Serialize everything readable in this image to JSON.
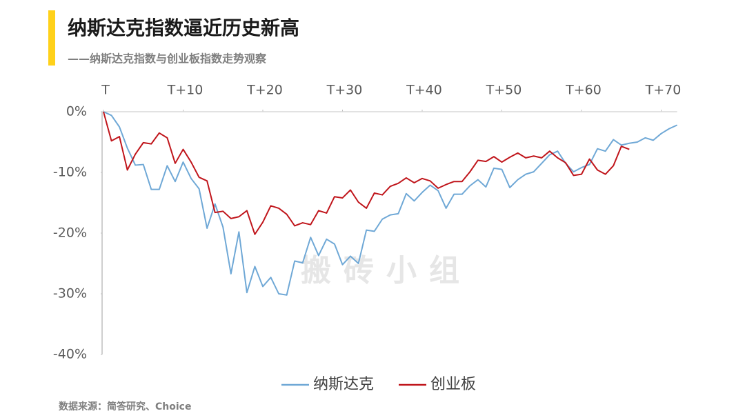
{
  "chart_data": {
    "type": "line",
    "title": "纳斯达克指数逼近历史新高",
    "subtitle": "——纳斯达克指数与创业板指数走势观察",
    "source": "数据来源：简答研究、Choice",
    "watermark": "搬砖小组",
    "x": [
      0,
      1,
      2,
      3,
      4,
      5,
      6,
      7,
      8,
      9,
      10,
      11,
      12,
      13,
      14,
      15,
      16,
      17,
      18,
      19,
      20,
      21,
      22,
      23,
      24,
      25,
      26,
      27,
      28,
      29,
      30,
      31,
      32,
      33,
      34,
      35,
      36,
      37,
      38,
      39,
      40,
      41,
      42,
      43,
      44,
      45,
      46,
      47,
      48,
      49,
      50,
      51,
      52,
      53,
      54,
      55,
      56,
      57,
      58,
      59,
      60,
      61,
      62,
      63,
      64,
      65,
      66,
      67,
      68,
      69,
      70,
      71,
      72
    ],
    "xlim": [
      0,
      72
    ],
    "xticks": [
      {
        "value": 0,
        "label": "T"
      },
      {
        "value": 10,
        "label": "T+10"
      },
      {
        "value": 20,
        "label": "T+20"
      },
      {
        "value": 30,
        "label": "T+30"
      },
      {
        "value": 40,
        "label": "T+40"
      },
      {
        "value": 50,
        "label": "T+50"
      },
      {
        "value": 60,
        "label": "T+60"
      },
      {
        "value": 70,
        "label": "T+70"
      }
    ],
    "ylim": [
      -40,
      0
    ],
    "yticks": [
      {
        "value": 0,
        "label": "0%"
      },
      {
        "value": -10,
        "label": "-10%"
      },
      {
        "value": -20,
        "label": "-20%"
      },
      {
        "value": -30,
        "label": "-30%"
      },
      {
        "value": -40,
        "label": "-40%"
      }
    ],
    "series": [
      {
        "name": "纳斯达克",
        "color": "#6fa8d6",
        "values": [
          0,
          -0.6,
          -2.5,
          -6,
          -8.8,
          -8.7,
          -12.8,
          -12.8,
          -8.9,
          -11.5,
          -8.3,
          -11,
          -12.7,
          -19.2,
          -15.2,
          -19,
          -26.7,
          -19.8,
          -29.8,
          -25.5,
          -28.8,
          -27.3,
          -30,
          -30.2,
          -24.6,
          -24.9,
          -20.7,
          -23.7,
          -21,
          -21.8,
          -25.2,
          -23.8,
          -25,
          -19.5,
          -19.7,
          -17.7,
          -17,
          -16.8,
          -13.5,
          -14.7,
          -13.3,
          -12.1,
          -13,
          -15.9,
          -13.6,
          -13.6,
          -12.2,
          -11.2,
          -12.4,
          -9.3,
          -9.5,
          -12.5,
          -11.2,
          -10.3,
          -9.9,
          -8.5,
          -7.1,
          -6.5,
          -8.5,
          -9.9,
          -9.2,
          -8.7,
          -6.1,
          -6.5,
          -4.6,
          -5.5,
          -5.2,
          -5,
          -4.3,
          -4.7,
          -3.6,
          -2.8,
          -2.2
        ]
      },
      {
        "name": "创业板",
        "color": "#c0151b",
        "values": [
          0,
          -4.8,
          -4.1,
          -9.6,
          -7,
          -5.1,
          -5.3,
          -3.5,
          -4.3,
          -8.5,
          -6.2,
          -8.3,
          -10.8,
          -11.4,
          -16.6,
          -16.4,
          -17.6,
          -17.3,
          -16.3,
          -20.2,
          -18.2,
          -15.5,
          -15.9,
          -16.9,
          -18.8,
          -18.3,
          -18.6,
          -16.3,
          -16.7,
          -14,
          -14.2,
          -12.9,
          -14.9,
          -15.9,
          -13.4,
          -13.7,
          -12.3,
          -11.8,
          -10.9,
          -11.7,
          -11,
          -11.4,
          -12.6,
          -12,
          -11.5,
          -11.5,
          -9.9,
          -8,
          -8.2,
          -7.4,
          -8.3,
          -7.5,
          -6.8,
          -7.6,
          -7.3,
          -7.6,
          -6.5,
          -7.6,
          -8.4,
          -10.5,
          -10.3,
          -7.8,
          -9.6,
          -10.3,
          -8.9,
          -5.7,
          -6.2,
          null,
          null,
          null,
          null,
          null,
          null
        ]
      }
    ]
  }
}
